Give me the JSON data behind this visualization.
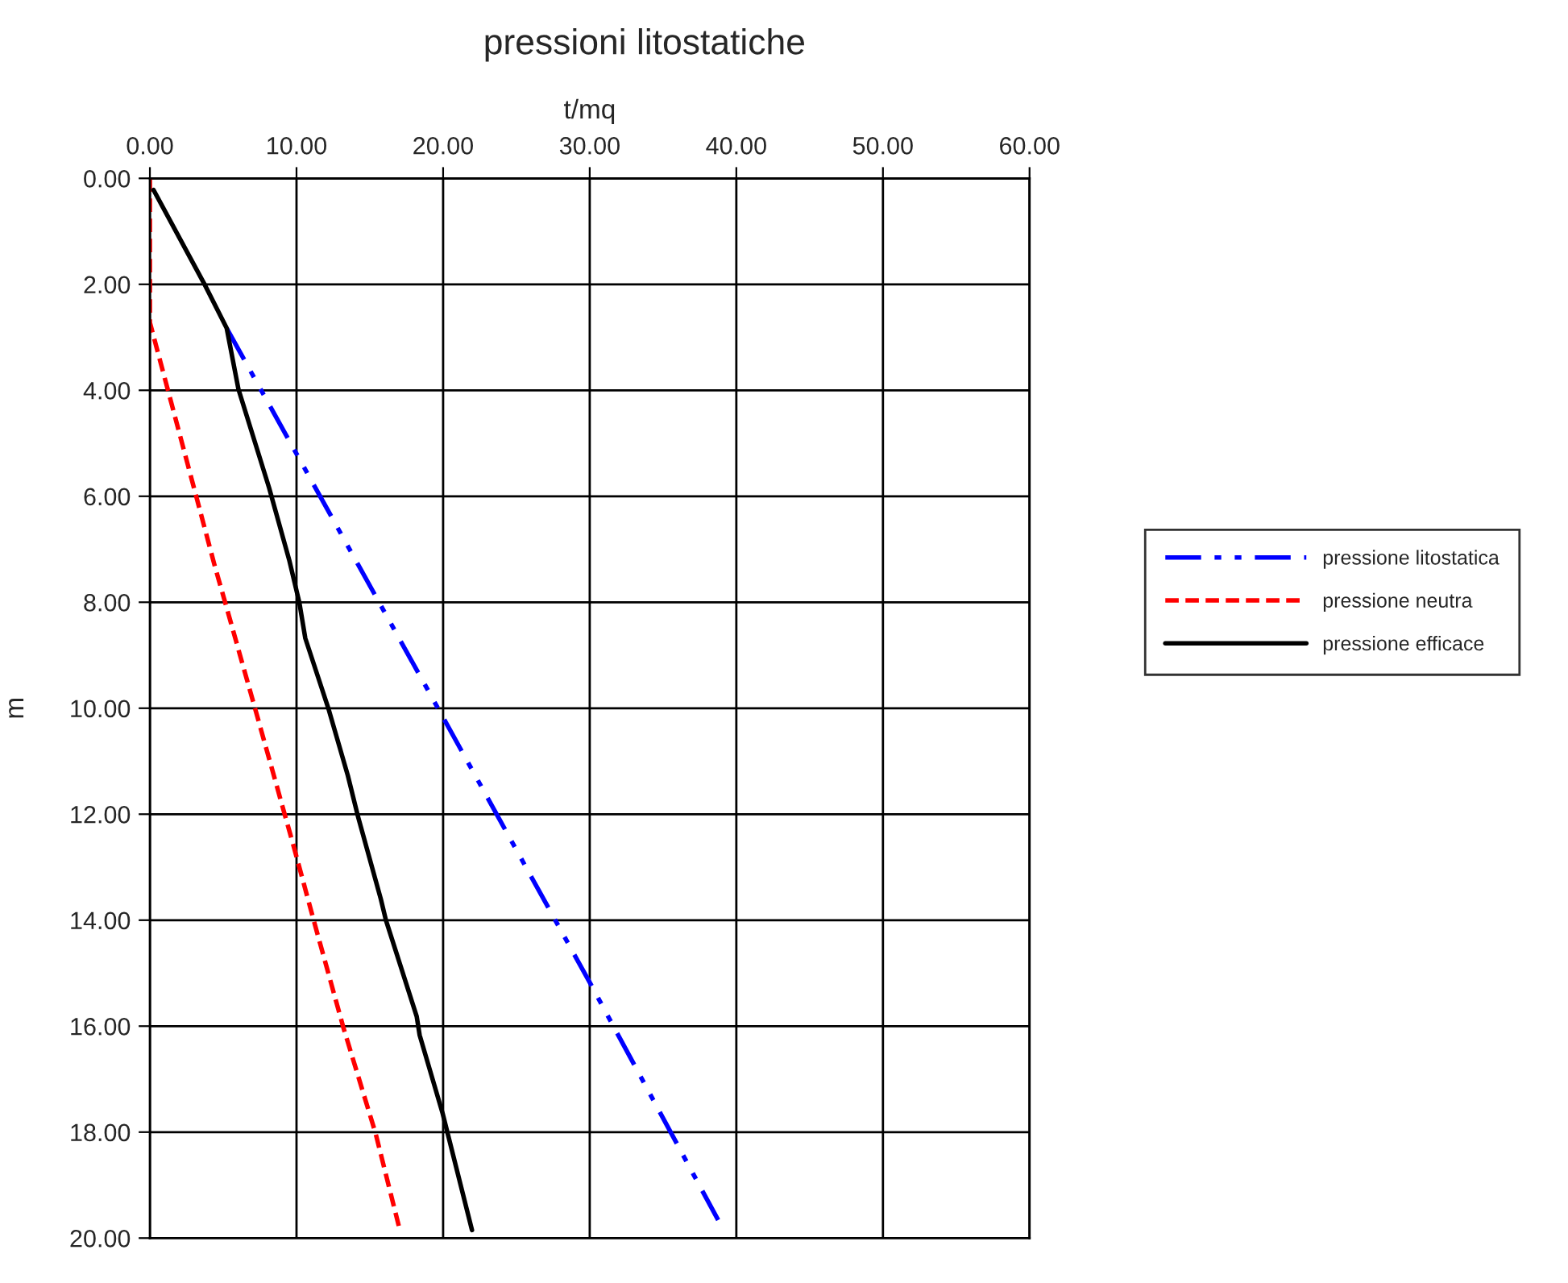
{
  "chart_data": {
    "type": "line",
    "title": "pressioni litostatiche",
    "xlabel": "t/mq",
    "ylabel": "m",
    "xlim": [
      0,
      60
    ],
    "ylim": [
      20,
      0
    ],
    "xticks": [
      {
        "value": 0,
        "label": "0.00"
      },
      {
        "value": 10,
        "label": "10.00"
      },
      {
        "value": 20,
        "label": "20.00"
      },
      {
        "value": 30,
        "label": "30.00"
      },
      {
        "value": 40,
        "label": "40.00"
      },
      {
        "value": 50,
        "label": "50.00"
      },
      {
        "value": 60,
        "label": "60.00"
      }
    ],
    "yticks": [
      {
        "value": 0,
        "label": "0.00"
      },
      {
        "value": 2,
        "label": "2.00"
      },
      {
        "value": 4,
        "label": "4.00"
      },
      {
        "value": 6,
        "label": "6.00"
      },
      {
        "value": 8,
        "label": "8.00"
      },
      {
        "value": 10,
        "label": "10.00"
      },
      {
        "value": 12,
        "label": "12.00"
      },
      {
        "value": 14,
        "label": "14.00"
      },
      {
        "value": 16,
        "label": "16.00"
      },
      {
        "value": 18,
        "label": "18.00"
      },
      {
        "value": 20,
        "label": "20.00"
      }
    ],
    "grid": true,
    "legend": "right",
    "marker": "none",
    "series": [
      {
        "name": "pressione litostatica",
        "color": "#0000ff",
        "line_style": "dashdot",
        "x": [
          null,
          null,
          5.24,
          19.97,
          30.05,
          38.76
        ],
        "values": [
          null,
          null,
          2.83,
          10.16,
          15.2,
          19.66
        ]
      },
      {
        "name": "pressione neutra",
        "color": "#ff0000",
        "line_style": "dashed",
        "x": [
          0,
          0,
          4.4,
          5.13,
          7.33,
          9.89,
          11.17,
          13.19,
          15.4,
          17.05
        ],
        "values": [
          0,
          2.72,
          7.29,
          8,
          10.16,
          12.69,
          14.0,
          16.02,
          18.03,
          19.85
        ]
      },
      {
        "name": "pressione efficace",
        "color": "#000000",
        "line_style": "solid",
        "x": [
          0.25,
          3.67,
          5.24,
          6.04,
          8.13,
          9.5,
          10.19,
          10.6,
          12.17,
          13.5,
          14.2,
          15.75,
          16.1,
          18.2,
          18.4,
          19.97,
          21.97
        ],
        "values": [
          0.22,
          1.97,
          2.83,
          3.98,
          5.84,
          7.2,
          8,
          8.68,
          10.0,
          11.27,
          12.05,
          13.6,
          14.0,
          15.82,
          16.17,
          17.65,
          19.85
        ]
      }
    ]
  }
}
